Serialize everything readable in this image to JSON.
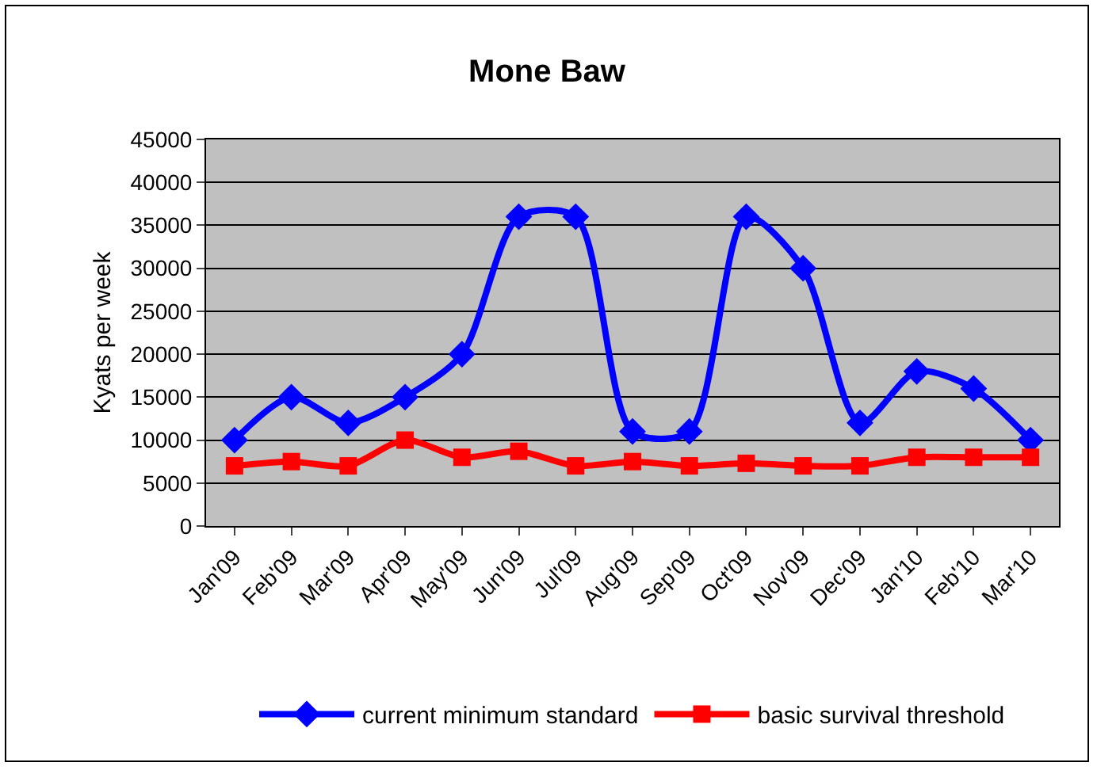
{
  "chart_data": {
    "type": "line",
    "title": "Mone Baw",
    "ylabel": "Kyats per week",
    "categories": [
      "Jan'09",
      "Feb'09",
      "Mar'09",
      "Apr'09",
      "May'09",
      "Jun'09",
      "Jul'09",
      "Aug'09",
      "Sep'09",
      "Oct'09",
      "Nov'09",
      "Dec'09",
      "Jan'10",
      "Feb'10",
      "Mar'10"
    ],
    "series": [
      {
        "name": "current minimum standard",
        "color": "#0000ff",
        "marker": "diamond",
        "values": [
          10000,
          15000,
          12000,
          15000,
          20000,
          36000,
          36000,
          11000,
          11000,
          36000,
          30000,
          12000,
          18000,
          16000,
          10000
        ]
      },
      {
        "name": "basic survival threshold",
        "color": "#ff0000",
        "marker": "square",
        "values": [
          7000,
          7500,
          7000,
          10000,
          8000,
          8700,
          7000,
          7500,
          7000,
          7300,
          7000,
          7000,
          8000,
          8000,
          8000
        ]
      }
    ],
    "ylim": [
      0,
      45000
    ],
    "yticks": [
      0,
      5000,
      10000,
      15000,
      20000,
      25000,
      30000,
      35000,
      40000,
      45000
    ],
    "grid": "y",
    "legend": "bottom",
    "line_style": "solid"
  }
}
